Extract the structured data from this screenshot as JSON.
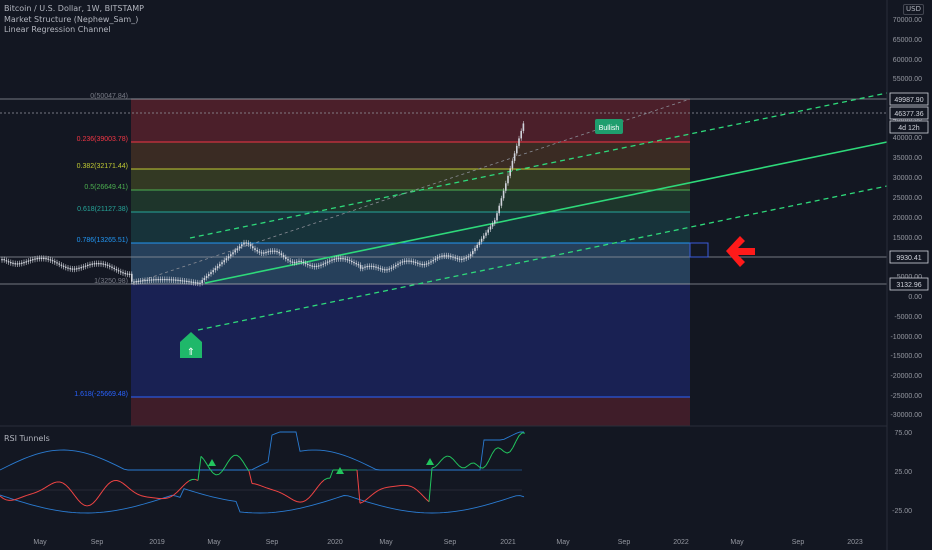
{
  "legend": {
    "symbol": "Bitcoin / U.S. Dollar, 1W, BITSTAMP",
    "ind1": "Market Structure (Nephew_Sam_)",
    "ind2": "Linear Regression Channel"
  },
  "currency_label": "USD",
  "rsi_title": "RSI Tunnels",
  "fib_labels": [
    "0(50047.84)",
    "0.236(39003.78)",
    "0.382(32171.44)",
    "0.5(26649.41)",
    "0.618(21127.38)",
    "0.786(13265.51)",
    "1(3250.98)",
    "1.618(-25669.48)"
  ],
  "fib_colors": [
    "#787b86",
    "#f23645",
    "#c0ca33",
    "#4caf50",
    "#26a69a",
    "#2196f3",
    "#787b86",
    "#2962ff"
  ],
  "price_axis_labels": [
    "70000.00",
    "65000.00",
    "60000.00",
    "55000.00",
    "45000.00",
    "40000.00",
    "35000.00",
    "30000.00",
    "25000.00",
    "20000.00",
    "15000.00",
    "5000.00",
    "0.00",
    "-5000.00",
    "-10000.00",
    "-15000.00",
    "-20000.00",
    "-25000.00",
    "-30000.00"
  ],
  "price_tags": [
    "49987.90",
    "46377.36",
    "4d 12h",
    "9930.41",
    "3132.96"
  ],
  "rsi_axis_labels": [
    "75.00",
    "25.00",
    "-25.00"
  ],
  "time_labels": [
    "May",
    "Sep",
    "2019",
    "May",
    "Sep",
    "2020",
    "May",
    "Sep",
    "2021",
    "May",
    "Sep",
    "2022",
    "May",
    "Sep",
    "2023"
  ],
  "bullish_label": "Bullish",
  "up_arrow_label": "⇑",
  "colors": {
    "background": "#131722",
    "regression": "#2ed97a",
    "candle": "#d1d4dc",
    "rsi_green": "#22c55e",
    "rsi_red": "#ef4444",
    "tunnel": "#2a7bd1",
    "arrow": "#ff1a1a"
  }
}
